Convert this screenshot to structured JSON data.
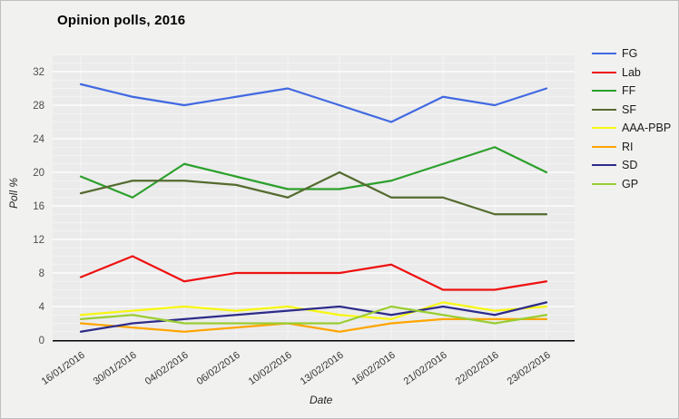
{
  "title": "Opinion polls, 2016",
  "chart_data": {
    "type": "line",
    "title": "Opinion polls, 2016",
    "xlabel": "Date",
    "ylabel": "Poll %",
    "x": [
      "16/01/2016",
      "30/01/2016",
      "04/02/2016",
      "06/02/2016",
      "10/02/2016",
      "13/02/2016",
      "16/02/2016",
      "21/02/2016",
      "22/02/2016",
      "23/02/2016"
    ],
    "series": [
      {
        "name": "FG",
        "color": "#4169e1",
        "values": [
          30.5,
          29,
          28,
          29,
          30,
          28,
          26,
          29,
          28,
          30
        ]
      },
      {
        "name": "Lab",
        "color": "#ee1111",
        "values": [
          7.5,
          10,
          7,
          8,
          8,
          8,
          9,
          6,
          6,
          7
        ]
      },
      {
        "name": "FF",
        "color": "#2ca02c",
        "values": [
          19.5,
          17,
          21,
          19.5,
          18,
          18,
          19,
          21,
          23,
          20
        ]
      },
      {
        "name": "SF",
        "color": "#556b2f",
        "values": [
          17.5,
          19,
          19,
          18.5,
          17,
          20,
          17,
          17,
          15,
          15
        ]
      },
      {
        "name": "AAA-PBP",
        "color": "#f7f711",
        "values": [
          3,
          3.5,
          4,
          3.5,
          4,
          3,
          2.5,
          4.5,
          3.5,
          4
        ]
      },
      {
        "name": "RI",
        "color": "#ffa500",
        "values": [
          2,
          1.5,
          1,
          1.5,
          2,
          1,
          2,
          2.5,
          2.5,
          2.5
        ]
      },
      {
        "name": "SD",
        "color": "#2e2b8b",
        "values": [
          1,
          2,
          2.5,
          3,
          3.5,
          4,
          3,
          4,
          3,
          4.5
        ]
      },
      {
        "name": "GP",
        "color": "#9acd32",
        "values": [
          2.5,
          3,
          2,
          2,
          2,
          2,
          4,
          3,
          2,
          3
        ]
      }
    ],
    "ylim": [
      0,
      34
    ],
    "yticks": [
      0,
      4,
      8,
      12,
      16,
      20,
      24,
      28,
      32
    ],
    "grid": "horizontal minor (1) and major (4) white gridlines on light gray panel",
    "legend_position": "right",
    "panel_background": "#ebebeb",
    "figure_background": "#f1f1f0",
    "gridline_color": "#ffffff"
  }
}
